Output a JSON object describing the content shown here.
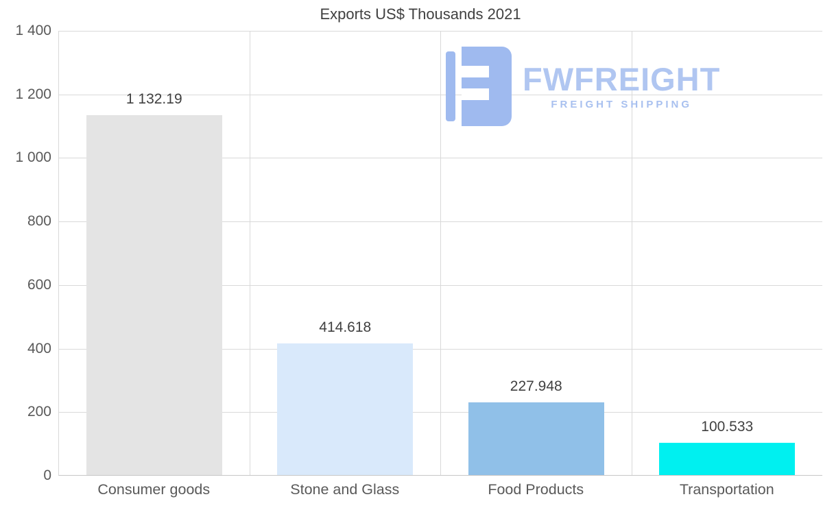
{
  "chart_data": {
    "type": "bar",
    "title": "Exports US$ Thousands 2021",
    "categories": [
      "Consumer goods",
      "Stone and Glass",
      "Food Products",
      "Transportation"
    ],
    "values": [
      1132.19,
      414.618,
      227.948,
      100.533
    ],
    "value_labels": [
      "1 132.19",
      "414.618",
      "227.948",
      "100.533"
    ],
    "bar_colors": [
      "#e4e4e4",
      "#d9e9fb",
      "#90c0e8",
      "#00f0f0"
    ],
    "xlabel": "",
    "ylabel": "",
    "ylim": [
      0,
      1400
    ],
    "y_ticks": [
      0,
      200,
      400,
      600,
      800,
      1000,
      1200,
      1400
    ],
    "y_tick_labels": [
      "0",
      "200",
      "400",
      "600",
      "800",
      "1 000",
      "1 200",
      "1 400"
    ],
    "grid": true,
    "legend_position": "none"
  },
  "logo": {
    "name": "FWFREIGHT",
    "tagline": "FREIGHT SHIPPING",
    "brand_color": "#a9c1f0"
  }
}
